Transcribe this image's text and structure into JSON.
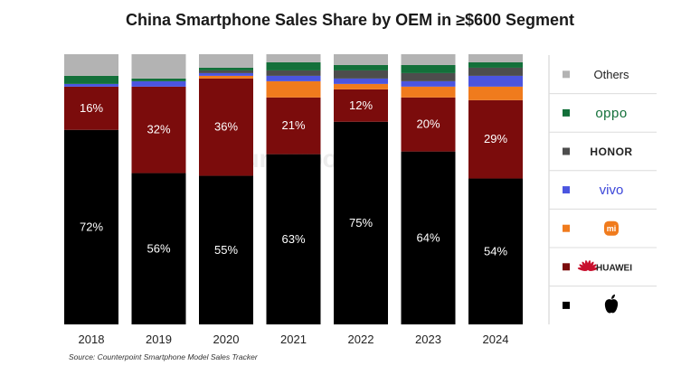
{
  "chart_data": {
    "type": "bar",
    "stacked": true,
    "normalized": true,
    "title": "China Smartphone Sales Share by OEM in ≥$600 Segment",
    "source": "Source: Counterpoint Smartphone Model Sales Tracker",
    "watermark": "Counterpoint",
    "categories": [
      "2018",
      "2019",
      "2020",
      "2021",
      "2022",
      "2023",
      "2024"
    ],
    "ylim": [
      0,
      100
    ],
    "grid": false,
    "legend_position": "right",
    "series": [
      {
        "name": "Apple",
        "legend_icon": "apple-logo",
        "color": "#000000",
        "values": [
          72,
          56,
          55,
          63,
          75,
          64,
          54
        ],
        "labels": [
          "72%",
          "56%",
          "55%",
          "63%",
          "75%",
          "64%",
          "54%"
        ]
      },
      {
        "name": "HUAWEI",
        "legend_icon": "huawei-logo",
        "color": "#7b0c0c",
        "values": [
          16,
          32,
          36,
          21,
          12,
          20,
          29
        ],
        "labels": [
          "16%",
          "32%",
          "36%",
          "21%",
          "12%",
          "20%",
          "29%"
        ]
      },
      {
        "name": "Xiaomi",
        "legend_icon": "xiaomi-logo",
        "color": "#f07b1d",
        "values": [
          0,
          0,
          1,
          6,
          2,
          4,
          5
        ],
        "labels": [
          "",
          "",
          "",
          "",
          "",
          "",
          ""
        ]
      },
      {
        "name": "vivo",
        "color": "#4b55e0",
        "values": [
          1,
          2,
          1,
          2,
          2,
          2,
          4
        ],
        "labels": [
          "",
          "",
          "",
          "",
          "",
          "",
          ""
        ]
      },
      {
        "name": "HONOR",
        "color": "#4d4d4d",
        "values": [
          0,
          0,
          1,
          2,
          3,
          3,
          3
        ],
        "labels": [
          "",
          "",
          "",
          "",
          "",
          "",
          ""
        ]
      },
      {
        "name": "oppo",
        "color": "#13703a",
        "values": [
          3,
          1,
          1,
          3,
          2,
          3,
          2
        ],
        "labels": [
          "",
          "",
          "",
          "",
          "",
          "",
          ""
        ]
      },
      {
        "name": "Others",
        "color": "#b3b3b3",
        "values": [
          8,
          9,
          5,
          3,
          4,
          4,
          3
        ],
        "labels": [
          "",
          "",
          "",
          "",
          "",
          "",
          ""
        ]
      }
    ],
    "legend_order": [
      "Others",
      "oppo",
      "HONOR",
      "vivo",
      "Xiaomi",
      "HUAWEI",
      "Apple"
    ]
  }
}
